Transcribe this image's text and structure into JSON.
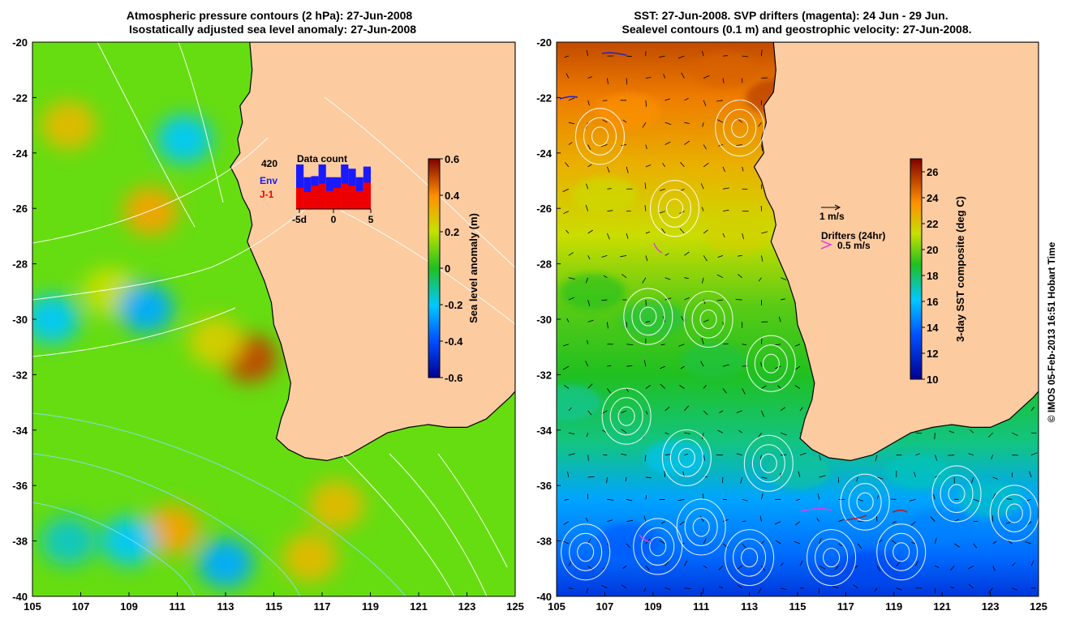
{
  "chart_data": [
    {
      "type": "heatmap",
      "title": "Atmospheric pressure contours (2 hPa): 27-Jun-2008",
      "subtitle": "Isostatically adjusted sea level anomaly: 27-Jun-2008",
      "x_ticks": [
        105,
        107,
        109,
        111,
        113,
        115,
        117,
        119,
        121,
        123,
        125
      ],
      "y_ticks": [
        -20,
        -22,
        -24,
        -26,
        -28,
        -30,
        -32,
        -34,
        -36,
        -38,
        -40
      ],
      "xlim": [
        105,
        125
      ],
      "ylim": [
        -40,
        -20
      ],
      "colorbar": {
        "label": "Sea level anomaly (m)",
        "range": [
          -0.6,
          0.6
        ],
        "ticks": [
          0.6,
          0.4,
          0.2,
          0,
          -0.2,
          -0.4,
          -0.6
        ]
      },
      "highlights": [
        {
          "lon": 114.0,
          "lat": -31.4,
          "value": 0.5
        },
        {
          "lon": 109.9,
          "lat": -26.1,
          "value": 0.35
        },
        {
          "lon": 106.5,
          "lat": -23.0,
          "value": 0.3
        },
        {
          "lon": 110.8,
          "lat": -37.6,
          "value": 0.35
        },
        {
          "lon": 117.6,
          "lat": -36.7,
          "value": 0.3
        },
        {
          "lon": 116.5,
          "lat": -38.6,
          "value": 0.3
        },
        {
          "lon": 108.2,
          "lat": -29.0,
          "value": 0.2
        },
        {
          "lon": 112.6,
          "lat": -30.8,
          "value": 0.25
        },
        {
          "lon": 109.7,
          "lat": -29.6,
          "value": -0.25
        },
        {
          "lon": 105.8,
          "lat": -30.0,
          "value": -0.2
        },
        {
          "lon": 111.3,
          "lat": -23.5,
          "value": -0.2
        },
        {
          "lon": 109.0,
          "lat": -38.0,
          "value": -0.2
        },
        {
          "lon": 113.0,
          "lat": -38.8,
          "value": -0.25
        },
        {
          "lon": 106.5,
          "lat": -38.0,
          "value": -0.15
        }
      ],
      "inset": {
        "title": "Data count",
        "max_label": "420",
        "env_label": "Env",
        "j1_label": "J-1",
        "x_ticks": [
          "-5d",
          "0",
          "5"
        ],
        "env_counts": [
          420,
          300,
          310,
          420,
          300,
          300,
          420,
          380,
          300,
          400
        ],
        "j1_counts": [
          200,
          160,
          220,
          240,
          170,
          200,
          240,
          220,
          170,
          250
        ]
      }
    },
    {
      "type": "heatmap",
      "title": "SST: 27-Jun-2008. SVP drifters (magenta): 24 Jun - 29 Jun.",
      "subtitle": "Sealevel contours (0.1 m) and geostrophic velocity: 27-Jun-2008.",
      "x_ticks": [
        105,
        107,
        109,
        111,
        113,
        115,
        117,
        119,
        121,
        123,
        125
      ],
      "y_ticks": [
        -20,
        -22,
        -24,
        -26,
        -28,
        -30,
        -32,
        -34,
        -36,
        -38,
        -40
      ],
      "xlim": [
        105,
        125
      ],
      "ylim": [
        -40,
        -20
      ],
      "colorbar": {
        "label": "3-day SST composite (deg C)",
        "range": [
          10,
          27
        ],
        "ticks": [
          26,
          24,
          22,
          20,
          18,
          16,
          14,
          12,
          10
        ]
      },
      "sst_stops": [
        {
          "lat": -20,
          "value": 25.5
        },
        {
          "lat": -22,
          "value": 24.5
        },
        {
          "lat": -24.5,
          "value": 23
        },
        {
          "lat": -27,
          "value": 21.5
        },
        {
          "lat": -29.5,
          "value": 19.5
        },
        {
          "lat": -32,
          "value": 18.5
        },
        {
          "lat": -34.5,
          "value": 17.2
        },
        {
          "lat": -36.5,
          "value": 14.8
        },
        {
          "lat": -38.5,
          "value": 13.5
        },
        {
          "lat": -40,
          "value": 12
        }
      ],
      "velocity_scale_label": "1 m/s",
      "drifter_legend_title": "Drifters (24hr)",
      "drifter_scale_label": "0.5 m/s",
      "drifter_color": "#e040e0"
    }
  ],
  "credit": "© IMOS 05-Feb-2013 16:51 Hobart Time",
  "colors": {
    "land": "#fccba0",
    "background": "#ffffff",
    "contour": "#ffffff"
  }
}
